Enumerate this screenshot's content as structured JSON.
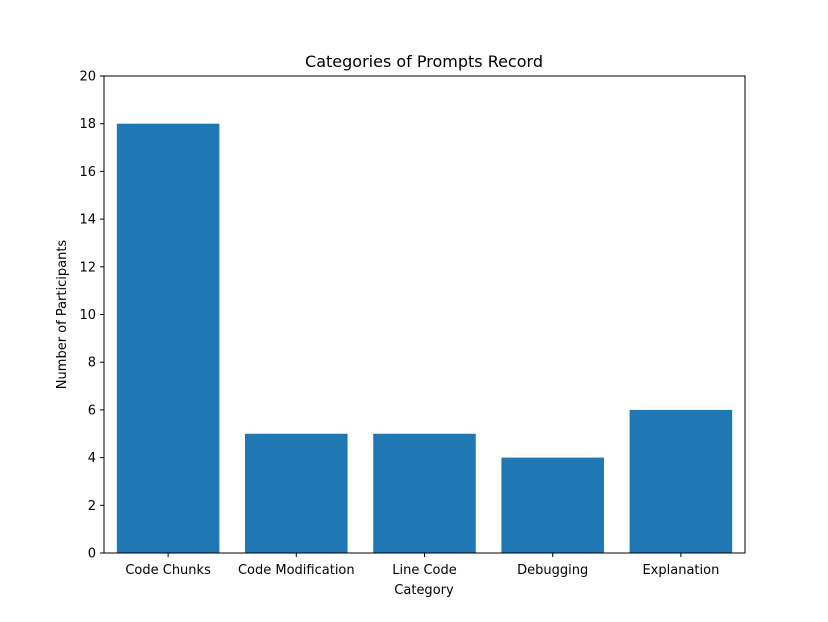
{
  "chart_data": {
    "type": "bar",
    "title": "Categories of Prompts Record",
    "xlabel": "Category",
    "ylabel": "Number of Participants",
    "categories": [
      "Code Chunks",
      "Code Modification",
      "Line Code",
      "Debugging",
      "Explanation"
    ],
    "values": [
      18,
      5,
      5,
      4,
      6
    ],
    "ylim": [
      0,
      20
    ],
    "yticks": [
      0,
      2,
      4,
      6,
      8,
      10,
      12,
      14,
      16,
      18,
      20
    ],
    "grid": false,
    "bar_color": "#1f77b4"
  }
}
